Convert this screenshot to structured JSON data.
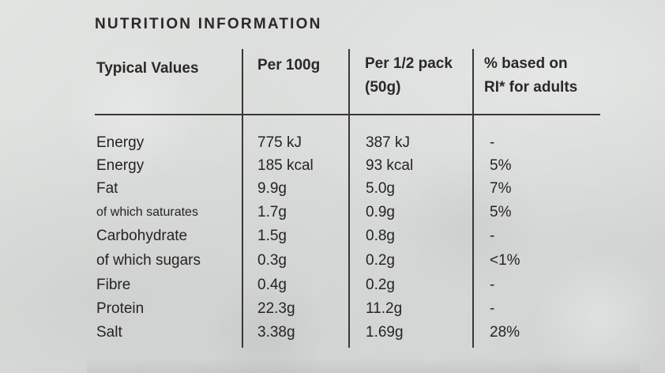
{
  "title": "NUTRITION INFORMATION",
  "columns": {
    "col1": "Typical Values",
    "col2": "Per 100g",
    "col3_line1": "Per 1/2 pack",
    "col3_line2": "(50g)",
    "col4_line1": "% based on",
    "col4_line2": "RI* for adults"
  },
  "rows": [
    {
      "label": "Energy",
      "per100g": "775 kJ",
      "perHalf": "387 kJ",
      "ri": "-"
    },
    {
      "label": "Energy",
      "per100g": "185 kcal",
      "perHalf": "93 kcal",
      "ri": "5%"
    },
    {
      "label": "Fat",
      "per100g": "9.9g",
      "perHalf": "5.0g",
      "ri": "7%"
    },
    {
      "label": "of which saturates",
      "per100g": "1.7g",
      "perHalf": "0.9g",
      "ri": "5%"
    },
    {
      "label": "Carbohydrate",
      "per100g": "1.5g",
      "perHalf": "0.8g",
      "ri": "-"
    },
    {
      "label": "of which sugars",
      "per100g": "0.3g",
      "perHalf": "0.2g",
      "ri": "<1%"
    },
    {
      "label": "Fibre",
      "per100g": "0.4g",
      "perHalf": "0.2g",
      "ri": "-"
    },
    {
      "label": "Protein",
      "per100g": "22.3g",
      "perHalf": "11.2g",
      "ri": "-"
    },
    {
      "label": "Salt",
      "per100g": "3.38g",
      "perHalf": "1.69g",
      "ri": "28%"
    }
  ]
}
